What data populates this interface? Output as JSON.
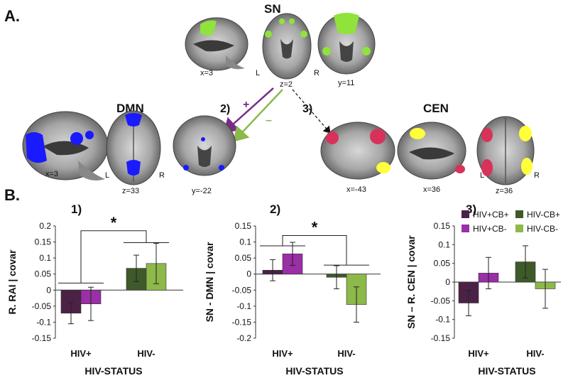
{
  "panel_a": {
    "label": "A.",
    "networks": {
      "sn": "SN",
      "dmn": "DMN",
      "cen": "CEN"
    },
    "slice_labels": {
      "sn_sag": "x=3",
      "sn_ax": "z=2",
      "sn_cor": "y=11",
      "dmn_sag": "x=3",
      "dmn_ax": "z=33",
      "dmn_cor": "y=-22",
      "cen_sag_l": "x=-43",
      "cen_sag_r": "x=36",
      "cen_ax": "z=36"
    },
    "side_labels": {
      "left": "L",
      "right": "R"
    },
    "paths": {
      "p2": "2)",
      "p3": "3)",
      "plus": "+",
      "minus": "–"
    },
    "colors": {
      "sn": "#8fe33a",
      "dmn": "#1a1aff",
      "cen_left": "#d9325a",
      "cen_right": "#ffff3a",
      "arrow_plus": "#7a2a8a",
      "arrow_minus": "#8db84a"
    }
  },
  "panel_b": {
    "label": "B.",
    "legend": [
      {
        "name": "HIV+CB+",
        "color": "#4b2246"
      },
      {
        "name": "HIV+CB-",
        "color": "#9a2fa6"
      },
      {
        "name": "HIV-CB+",
        "color": "#3f5a2a"
      },
      {
        "name": "HIV-CB-",
        "color": "#8db84a"
      }
    ]
  },
  "chart_data": [
    {
      "type": "bar",
      "panel_label": "1)",
      "categories": [
        "HIV+",
        "HIV-"
      ],
      "xlabel": "HIV-STATUS",
      "ylabel": "R. RAI | covar",
      "ylim": [
        -0.15,
        0.2
      ],
      "yticks": [
        "0.2",
        "0.15",
        "0.1",
        "0.05",
        "0",
        "-0.05",
        "-0.1",
        "-0.15"
      ],
      "significance": "*",
      "series": [
        {
          "name": "HIV+CB+",
          "values": [
            -0.072,
            null
          ],
          "errors": [
            0.033,
            null
          ]
        },
        {
          "name": "HIV+CB-",
          "values": [
            -0.043,
            null
          ],
          "errors": [
            0.052,
            null
          ]
        },
        {
          "name": "HIV-CB+",
          "values": [
            null,
            0.068
          ],
          "errors": [
            null,
            0.041
          ]
        },
        {
          "name": "HIV-CB-",
          "values": [
            null,
            0.083
          ],
          "errors": [
            null,
            0.063
          ]
        }
      ]
    },
    {
      "type": "bar",
      "panel_label": "2)",
      "categories": [
        "HIV+",
        "HIV-"
      ],
      "xlabel": "HIV-STATUS",
      "ylabel": "SN - DMN | covar",
      "ylim": [
        -0.2,
        0.15
      ],
      "yticks": [
        "0.15",
        "0.1",
        "0.05",
        "0",
        "-0.05",
        "-0.1",
        "-0.15",
        "-0.2"
      ],
      "significance": "*",
      "series": [
        {
          "name": "HIV+CB+",
          "values": [
            0.012,
            null
          ],
          "errors": [
            0.033,
            null
          ]
        },
        {
          "name": "HIV+CB-",
          "values": [
            0.063,
            null
          ],
          "errors": [
            0.036,
            null
          ]
        },
        {
          "name": "HIV-CB+",
          "values": [
            null,
            -0.01
          ],
          "errors": [
            null,
            0.036
          ]
        },
        {
          "name": "HIV-CB-",
          "values": [
            null,
            -0.095
          ],
          "errors": [
            null,
            0.055
          ]
        }
      ]
    },
    {
      "type": "bar",
      "panel_label": "3)",
      "categories": [
        "HIV+",
        "HIV-"
      ],
      "xlabel": "HIV-STATUS",
      "ylabel": "SN – R. CEN | covar",
      "ylim": [
        -0.15,
        0.15
      ],
      "yticks": [
        "0.15",
        "0.1",
        "0.05",
        "0",
        "-0.05",
        "-0.1",
        "-0.15"
      ],
      "series": [
        {
          "name": "HIV+CB+",
          "values": [
            -0.056,
            null
          ],
          "errors": [
            0.034,
            null
          ]
        },
        {
          "name": "HIV+CB-",
          "values": [
            0.024,
            null
          ],
          "errors": [
            0.042,
            null
          ]
        },
        {
          "name": "HIV-CB+",
          "values": [
            null,
            0.054
          ],
          "errors": [
            null,
            0.043
          ]
        },
        {
          "name": "HIV-CB-",
          "values": [
            null,
            -0.018
          ],
          "errors": [
            null,
            0.052
          ]
        }
      ]
    }
  ]
}
